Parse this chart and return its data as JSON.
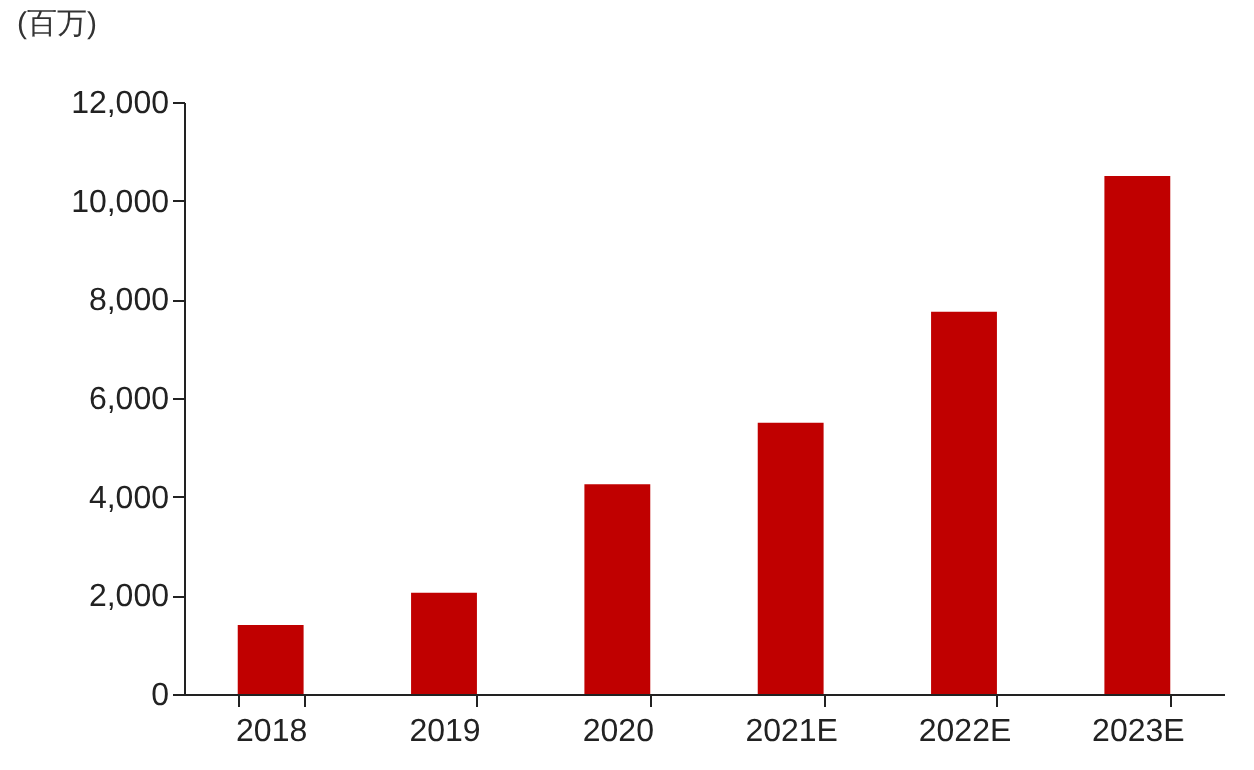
{
  "chart_data": {
    "type": "bar",
    "ylabel": "(百万)",
    "categories": [
      "2018",
      "2019",
      "2020",
      "2021E",
      "2022E",
      "2023E"
    ],
    "values": [
      1400,
      2050,
      4250,
      5500,
      7750,
      10500
    ],
    "color": "#c00000",
    "ylim": [
      0,
      12000
    ],
    "yticks": [
      0,
      {
        "value": 2000,
        "label": "2,000"
      },
      {
        "value": 4000,
        "label": "4,000"
      },
      {
        "value": 6000,
        "label": "6,000"
      },
      {
        "value": 8000,
        "label": "8,000"
      },
      {
        "value": 10000,
        "label": "10,000"
      },
      {
        "value": 12000,
        "label": "12,000"
      }
    ],
    "grid": false
  }
}
